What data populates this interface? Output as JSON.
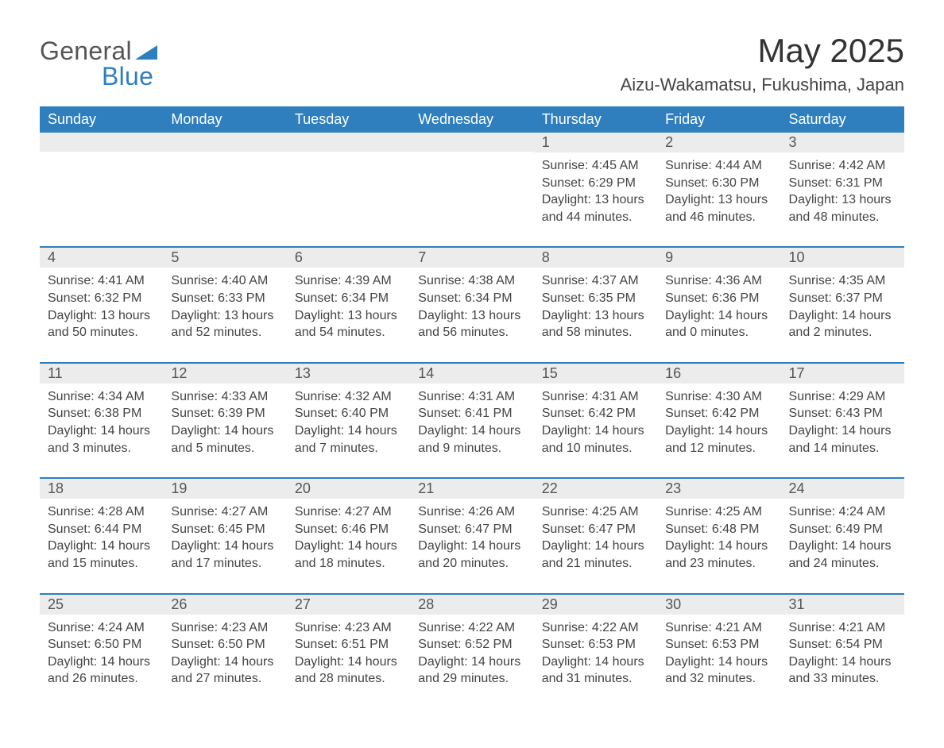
{
  "logo": {
    "word1": "General",
    "word2": "Blue"
  },
  "title": "May 2025",
  "subtitle": "Aizu-Wakamatsu, Fukushima, Japan",
  "colors": {
    "accent": "#2f7fbf",
    "header_text": "#ffffff",
    "daybar_bg": "#ececec",
    "text": "#444444",
    "page_bg": "#ffffff"
  },
  "table": {
    "columns": [
      "Sunday",
      "Monday",
      "Tuesday",
      "Wednesday",
      "Thursday",
      "Friday",
      "Saturday"
    ],
    "weeks": [
      [
        null,
        null,
        null,
        null,
        {
          "n": "1",
          "sunrise": "Sunrise: 4:45 AM",
          "sunset": "Sunset: 6:29 PM",
          "daylight": "Daylight: 13 hours and 44 minutes."
        },
        {
          "n": "2",
          "sunrise": "Sunrise: 4:44 AM",
          "sunset": "Sunset: 6:30 PM",
          "daylight": "Daylight: 13 hours and 46 minutes."
        },
        {
          "n": "3",
          "sunrise": "Sunrise: 4:42 AM",
          "sunset": "Sunset: 6:31 PM",
          "daylight": "Daylight: 13 hours and 48 minutes."
        }
      ],
      [
        {
          "n": "4",
          "sunrise": "Sunrise: 4:41 AM",
          "sunset": "Sunset: 6:32 PM",
          "daylight": "Daylight: 13 hours and 50 minutes."
        },
        {
          "n": "5",
          "sunrise": "Sunrise: 4:40 AM",
          "sunset": "Sunset: 6:33 PM",
          "daylight": "Daylight: 13 hours and 52 minutes."
        },
        {
          "n": "6",
          "sunrise": "Sunrise: 4:39 AM",
          "sunset": "Sunset: 6:34 PM",
          "daylight": "Daylight: 13 hours and 54 minutes."
        },
        {
          "n": "7",
          "sunrise": "Sunrise: 4:38 AM",
          "sunset": "Sunset: 6:34 PM",
          "daylight": "Daylight: 13 hours and 56 minutes."
        },
        {
          "n": "8",
          "sunrise": "Sunrise: 4:37 AM",
          "sunset": "Sunset: 6:35 PM",
          "daylight": "Daylight: 13 hours and 58 minutes."
        },
        {
          "n": "9",
          "sunrise": "Sunrise: 4:36 AM",
          "sunset": "Sunset: 6:36 PM",
          "daylight": "Daylight: 14 hours and 0 minutes."
        },
        {
          "n": "10",
          "sunrise": "Sunrise: 4:35 AM",
          "sunset": "Sunset: 6:37 PM",
          "daylight": "Daylight: 14 hours and 2 minutes."
        }
      ],
      [
        {
          "n": "11",
          "sunrise": "Sunrise: 4:34 AM",
          "sunset": "Sunset: 6:38 PM",
          "daylight": "Daylight: 14 hours and 3 minutes."
        },
        {
          "n": "12",
          "sunrise": "Sunrise: 4:33 AM",
          "sunset": "Sunset: 6:39 PM",
          "daylight": "Daylight: 14 hours and 5 minutes."
        },
        {
          "n": "13",
          "sunrise": "Sunrise: 4:32 AM",
          "sunset": "Sunset: 6:40 PM",
          "daylight": "Daylight: 14 hours and 7 minutes."
        },
        {
          "n": "14",
          "sunrise": "Sunrise: 4:31 AM",
          "sunset": "Sunset: 6:41 PM",
          "daylight": "Daylight: 14 hours and 9 minutes."
        },
        {
          "n": "15",
          "sunrise": "Sunrise: 4:31 AM",
          "sunset": "Sunset: 6:42 PM",
          "daylight": "Daylight: 14 hours and 10 minutes."
        },
        {
          "n": "16",
          "sunrise": "Sunrise: 4:30 AM",
          "sunset": "Sunset: 6:42 PM",
          "daylight": "Daylight: 14 hours and 12 minutes."
        },
        {
          "n": "17",
          "sunrise": "Sunrise: 4:29 AM",
          "sunset": "Sunset: 6:43 PM",
          "daylight": "Daylight: 14 hours and 14 minutes."
        }
      ],
      [
        {
          "n": "18",
          "sunrise": "Sunrise: 4:28 AM",
          "sunset": "Sunset: 6:44 PM",
          "daylight": "Daylight: 14 hours and 15 minutes."
        },
        {
          "n": "19",
          "sunrise": "Sunrise: 4:27 AM",
          "sunset": "Sunset: 6:45 PM",
          "daylight": "Daylight: 14 hours and 17 minutes."
        },
        {
          "n": "20",
          "sunrise": "Sunrise: 4:27 AM",
          "sunset": "Sunset: 6:46 PM",
          "daylight": "Daylight: 14 hours and 18 minutes."
        },
        {
          "n": "21",
          "sunrise": "Sunrise: 4:26 AM",
          "sunset": "Sunset: 6:47 PM",
          "daylight": "Daylight: 14 hours and 20 minutes."
        },
        {
          "n": "22",
          "sunrise": "Sunrise: 4:25 AM",
          "sunset": "Sunset: 6:47 PM",
          "daylight": "Daylight: 14 hours and 21 minutes."
        },
        {
          "n": "23",
          "sunrise": "Sunrise: 4:25 AM",
          "sunset": "Sunset: 6:48 PM",
          "daylight": "Daylight: 14 hours and 23 minutes."
        },
        {
          "n": "24",
          "sunrise": "Sunrise: 4:24 AM",
          "sunset": "Sunset: 6:49 PM",
          "daylight": "Daylight: 14 hours and 24 minutes."
        }
      ],
      [
        {
          "n": "25",
          "sunrise": "Sunrise: 4:24 AM",
          "sunset": "Sunset: 6:50 PM",
          "daylight": "Daylight: 14 hours and 26 minutes."
        },
        {
          "n": "26",
          "sunrise": "Sunrise: 4:23 AM",
          "sunset": "Sunset: 6:50 PM",
          "daylight": "Daylight: 14 hours and 27 minutes."
        },
        {
          "n": "27",
          "sunrise": "Sunrise: 4:23 AM",
          "sunset": "Sunset: 6:51 PM",
          "daylight": "Daylight: 14 hours and 28 minutes."
        },
        {
          "n": "28",
          "sunrise": "Sunrise: 4:22 AM",
          "sunset": "Sunset: 6:52 PM",
          "daylight": "Daylight: 14 hours and 29 minutes."
        },
        {
          "n": "29",
          "sunrise": "Sunrise: 4:22 AM",
          "sunset": "Sunset: 6:53 PM",
          "daylight": "Daylight: 14 hours and 31 minutes."
        },
        {
          "n": "30",
          "sunrise": "Sunrise: 4:21 AM",
          "sunset": "Sunset: 6:53 PM",
          "daylight": "Daylight: 14 hours and 32 minutes."
        },
        {
          "n": "31",
          "sunrise": "Sunrise: 4:21 AM",
          "sunset": "Sunset: 6:54 PM",
          "daylight": "Daylight: 14 hours and 33 minutes."
        }
      ]
    ]
  }
}
